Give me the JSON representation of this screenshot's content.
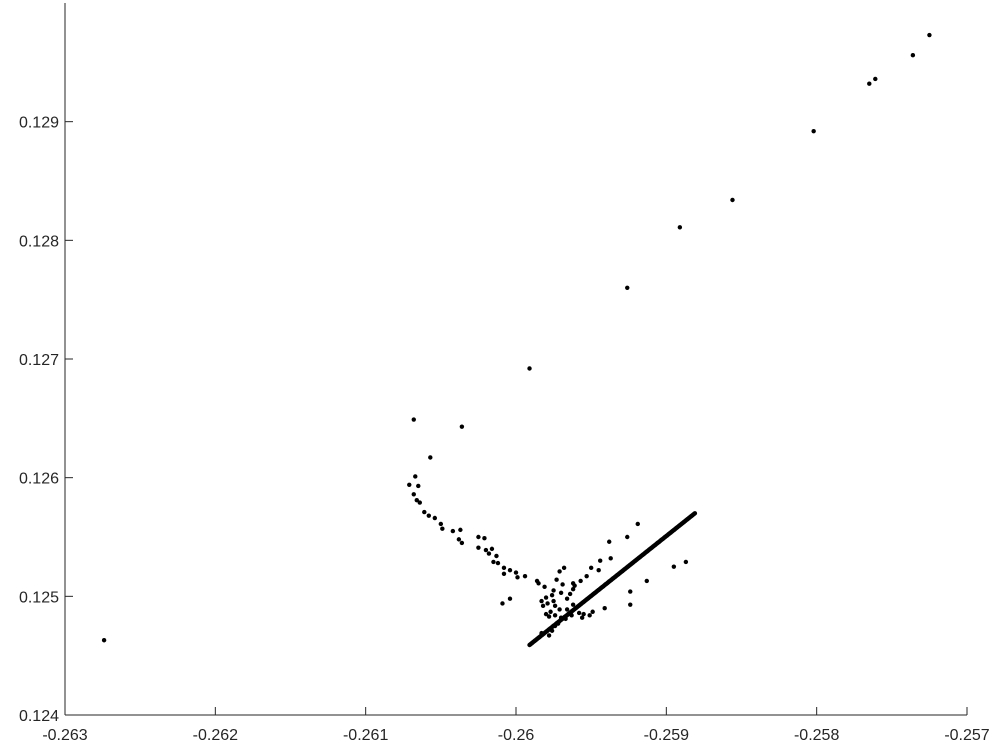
{
  "chart_data": {
    "type": "scatter",
    "title": "",
    "xlabel": "",
    "ylabel": "",
    "xlim": [
      -0.263,
      -0.257
    ],
    "ylim": [
      0.124,
      0.13
    ],
    "x_ticks": [
      -0.263,
      -0.262,
      -0.261,
      -0.26,
      -0.259,
      -0.258,
      -0.257
    ],
    "x_tick_labels": [
      "-0.263",
      "-0.262",
      "-0.261",
      "-0.26",
      "-0.259",
      "-0.258",
      "-0.257"
    ],
    "y_ticks": [
      0.124,
      0.125,
      0.126,
      0.127,
      0.128,
      0.129
    ],
    "y_tick_labels": [
      "0.124",
      "0.125",
      "0.126",
      "0.127",
      "0.128",
      "0.129"
    ],
    "grid": false,
    "legend": "none",
    "marker_color": "#000000",
    "axis_color": "#262626",
    "series": [
      {
        "points": [
          [
            -0.25725,
            0.12973
          ],
          [
            -0.25736,
            0.12956
          ],
          [
            -0.25761,
            0.12936
          ],
          [
            -0.25765,
            0.12932
          ],
          [
            -0.25802,
            0.12892
          ],
          [
            -0.25856,
            0.12834
          ],
          [
            -0.25891,
            0.12811
          ],
          [
            -0.25926,
            0.1276
          ],
          [
            -0.25991,
            0.12692
          ],
          [
            -0.26036,
            0.12643
          ],
          [
            -0.26068,
            0.12649
          ],
          [
            -0.26057,
            0.12617
          ],
          [
            -0.26067,
            0.12601
          ],
          [
            -0.26071,
            0.12594
          ],
          [
            -0.26065,
            0.12593
          ],
          [
            -0.26068,
            0.12586
          ],
          [
            -0.26066,
            0.12581
          ],
          [
            -0.26064,
            0.12579
          ],
          [
            -0.26061,
            0.12571
          ],
          [
            -0.26058,
            0.12568
          ],
          [
            -0.26054,
            0.12566
          ],
          [
            -0.2605,
            0.12561
          ],
          [
            -0.26049,
            0.12557
          ],
          [
            -0.26042,
            0.12555
          ],
          [
            -0.26037,
            0.12556
          ],
          [
            -0.26038,
            0.12548
          ],
          [
            -0.26036,
            0.12545
          ],
          [
            -0.26025,
            0.1255
          ],
          [
            -0.26021,
            0.12549
          ],
          [
            -0.26025,
            0.12541
          ],
          [
            -0.2602,
            0.12539
          ],
          [
            -0.26016,
            0.1254
          ],
          [
            -0.26018,
            0.12536
          ],
          [
            -0.26013,
            0.12534
          ],
          [
            -0.26015,
            0.12529
          ],
          [
            -0.26012,
            0.12528
          ],
          [
            -0.26008,
            0.12524
          ],
          [
            -0.26008,
            0.12519
          ],
          [
            -0.26004,
            0.12522
          ],
          [
            -0.26,
            0.1252
          ],
          [
            -0.25999,
            0.12516
          ],
          [
            -0.25994,
            0.12517
          ],
          [
            -0.26009,
            0.12494
          ],
          [
            -0.26004,
            0.12498
          ],
          [
            -0.25986,
            0.12513
          ],
          [
            -0.25985,
            0.12511
          ],
          [
            -0.25981,
            0.12508
          ],
          [
            -0.25975,
            0.12505
          ],
          [
            -0.25976,
            0.12501
          ],
          [
            -0.25975,
            0.12496
          ],
          [
            -0.25974,
            0.12492
          ],
          [
            -0.25982,
            0.12492
          ],
          [
            -0.25983,
            0.12496
          ],
          [
            -0.2598,
            0.12499
          ],
          [
            -0.25979,
            0.12494
          ],
          [
            -0.25971,
            0.12489
          ],
          [
            -0.25966,
            0.12489
          ],
          [
            -0.25962,
            0.12493
          ],
          [
            -0.25977,
            0.12487
          ],
          [
            -0.2598,
            0.12485
          ],
          [
            -0.25978,
            0.12483
          ],
          [
            -0.25974,
            0.12484
          ],
          [
            -0.2597,
            0.12482
          ],
          [
            -0.25967,
            0.12481
          ],
          [
            -0.25963,
            0.12484
          ],
          [
            -0.25972,
            0.12477
          ],
          [
            -0.25974,
            0.12475
          ],
          [
            -0.25976,
            0.12471
          ],
          [
            -0.25983,
            0.12469
          ],
          [
            -0.25978,
            0.12467
          ],
          [
            -0.2597,
            0.12503
          ],
          [
            -0.25966,
            0.12498
          ],
          [
            -0.25964,
            0.12502
          ],
          [
            -0.25962,
            0.12506
          ],
          [
            -0.25961,
            0.12509
          ],
          [
            -0.25957,
            0.12513
          ],
          [
            -0.25953,
            0.12517
          ],
          [
            -0.2595,
            0.12524
          ],
          [
            -0.25945,
            0.12522
          ],
          [
            -0.25944,
            0.1253
          ],
          [
            -0.25937,
            0.12532
          ],
          [
            -0.25938,
            0.12546
          ],
          [
            -0.25926,
            0.1255
          ],
          [
            -0.25919,
            0.12561
          ],
          [
            -0.25968,
            0.12524
          ],
          [
            -0.25971,
            0.12521
          ],
          [
            -0.25973,
            0.12514
          ],
          [
            -0.25969,
            0.1251
          ],
          [
            -0.25962,
            0.12511
          ],
          [
            -0.25924,
            0.12504
          ],
          [
            -0.25913,
            0.12513
          ],
          [
            -0.25895,
            0.12525
          ],
          [
            -0.25887,
            0.12529
          ],
          [
            -0.25924,
            0.12493
          ],
          [
            -0.25941,
            0.1249
          ],
          [
            -0.25955,
            0.12485
          ],
          [
            -0.25949,
            0.12487
          ],
          [
            -0.25958,
            0.12486
          ],
          [
            -0.25956,
            0.12482
          ],
          [
            -0.25951,
            0.12484
          ],
          [
            -0.26274,
            0.12463
          ]
        ]
      },
      {
        "segment_from": [
          -0.25991,
          0.12459
        ],
        "segment_to": [
          -0.25881,
          0.1257
        ],
        "count": 220
      }
    ]
  }
}
